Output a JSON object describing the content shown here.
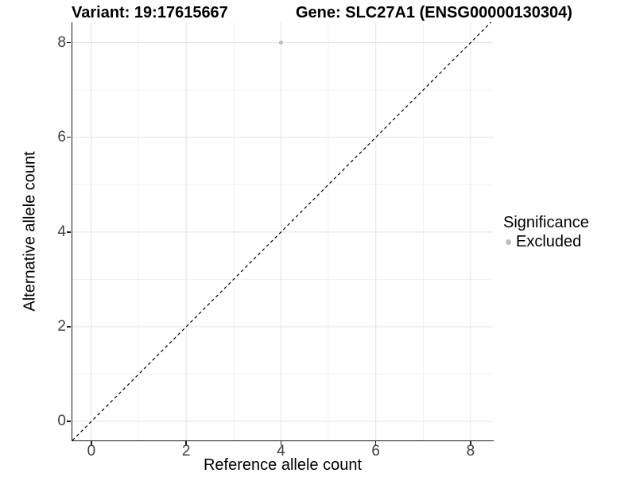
{
  "header": {
    "variant_title": "Variant: 19:17615667",
    "gene_title": "Gene: SLC27A1 (ENSG00000130304)"
  },
  "chart_data": {
    "type": "scatter",
    "title": "Variant: 19:17615667 — Gene: SLC27A1 (ENSG00000130304)",
    "xlabel": "Reference allele count",
    "ylabel": "Alternative allele count",
    "xlim": [
      -0.402,
      8.47
    ],
    "ylim": [
      -0.402,
      8.43
    ],
    "x_ticks": [
      0,
      2,
      4,
      6,
      8
    ],
    "y_ticks": [
      0,
      2,
      4,
      6,
      8
    ],
    "x_minor_ticks": [
      1,
      3,
      5,
      7
    ],
    "y_minor_ticks": [
      1,
      3,
      5,
      7
    ],
    "grid": true,
    "legend_position": "right",
    "series": [
      {
        "name": "Excluded",
        "points": [
          {
            "x": 4,
            "y": 8
          }
        ],
        "color": "#bebebe"
      }
    ],
    "reference_line": {
      "type": "identity",
      "style": "dashed",
      "color": "#000000"
    },
    "legend": {
      "title": "Significance",
      "entries": [
        {
          "label": "Excluded",
          "color": "#bebebe",
          "marker": "circle"
        }
      ]
    }
  },
  "colors": {
    "background": "#ffffff",
    "grid_major": "#e3e3e3",
    "grid_minor": "#f1f1f1",
    "axis_line": "#1a1a1a",
    "tick_label": "#404040",
    "text": "#000000"
  }
}
